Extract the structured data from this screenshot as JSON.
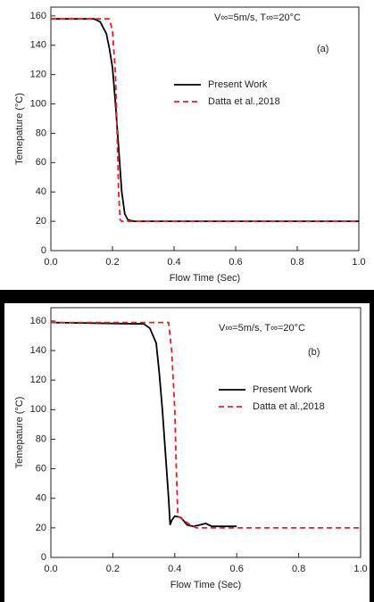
{
  "chart_data": [
    {
      "type": "line",
      "panel_label": "(a)",
      "annotation": "V∞=5m/s, T∞=20°C",
      "x_label": "Flow Time (Sec)",
      "y_label": "Temepature (°C)",
      "xlim": [
        0,
        1
      ],
      "ylim": [
        0,
        166
      ],
      "xticks": [
        {
          "value": 0,
          "label": "0.0"
        },
        0.2,
        0.4,
        0.6,
        0.8,
        {
          "value": 1,
          "label": "1.0"
        }
      ],
      "yticks": [
        0,
        20,
        40,
        60,
        80,
        100,
        120,
        140,
        160
      ],
      "series": [
        {
          "name": "Present Work",
          "color": "#000000",
          "dash": false,
          "x": [
            0,
            0.14,
            0.16,
            0.18,
            0.19,
            0.2,
            0.21,
            0.22,
            0.23,
            0.24,
            0.25,
            0.27,
            1.0
          ],
          "values": [
            158,
            158,
            156,
            148,
            138,
            125,
            100,
            70,
            40,
            25,
            21,
            20,
            20
          ]
        },
        {
          "name": "Datta et al.,2018",
          "color": "#e8202a",
          "dash": true,
          "x": [
            0,
            0.19,
            0.2,
            0.21,
            0.215,
            0.22,
            0.225,
            0.23,
            1.0
          ],
          "values": [
            158,
            158,
            150,
            120,
            80,
            40,
            21,
            20,
            20
          ]
        }
      ]
    },
    {
      "type": "line",
      "panel_label": "(b)",
      "annotation": "V∞=5m/s, T∞=20°C",
      "x_label": "Flow Time (Sec)",
      "y_label": "Temepature (°C)",
      "xlim": [
        0,
        1
      ],
      "ylim": [
        0,
        169
      ],
      "xticks": [
        {
          "value": 0,
          "label": "0.0"
        },
        0.2,
        0.4,
        0.6,
        0.8,
        {
          "value": 1,
          "label": "1.0"
        }
      ],
      "yticks": [
        0,
        20,
        40,
        60,
        80,
        100,
        120,
        140,
        160
      ],
      "series": [
        {
          "name": "Present Work",
          "color": "#000000",
          "dash": false,
          "x": [
            0,
            0.3,
            0.32,
            0.34,
            0.35,
            0.36,
            0.37,
            0.38,
            0.385,
            0.39,
            0.4,
            0.42,
            0.44,
            0.46,
            0.48,
            0.5,
            0.52,
            0.55,
            0.6
          ],
          "values": [
            159,
            158,
            155,
            145,
            125,
            100,
            70,
            40,
            22,
            25,
            28,
            27,
            22,
            21,
            22,
            23,
            21,
            21,
            21
          ]
        },
        {
          "name": "Datta et al.,2018",
          "color": "#e8202a",
          "dash": true,
          "x": [
            0,
            0.38,
            0.39,
            0.4,
            0.405,
            0.41,
            0.43,
            0.45,
            0.47,
            0.5,
            1.0
          ],
          "values": [
            159,
            159,
            140,
            100,
            60,
            28,
            25,
            22,
            20,
            20,
            20
          ]
        }
      ]
    }
  ]
}
